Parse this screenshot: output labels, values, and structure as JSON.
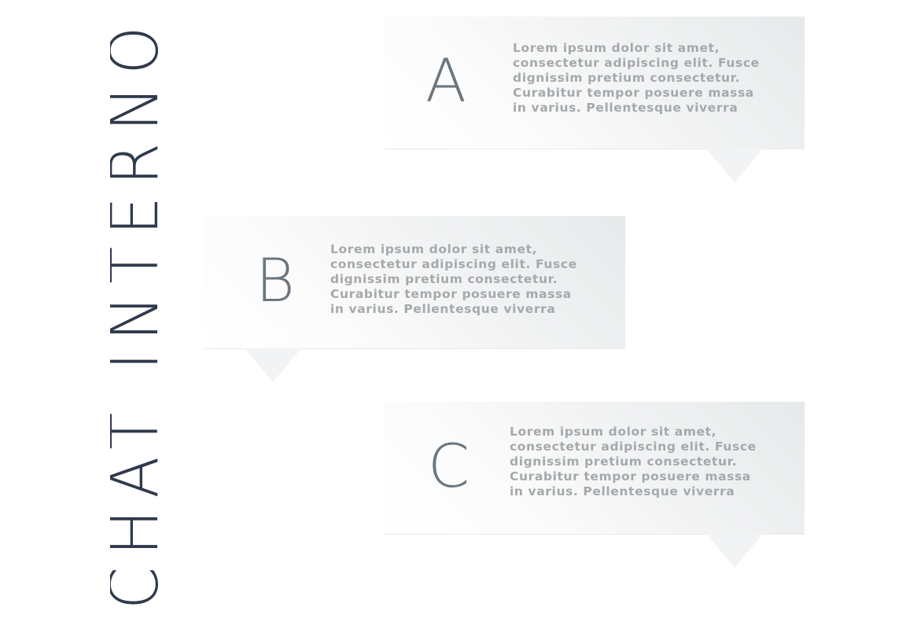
{
  "title": "CHAT INTERNO",
  "bubbles": [
    {
      "letter": "A",
      "text": "Lorem ipsum dolor sit amet, consectetur adipiscing elit. Fusce dignissim pretium consectetur. Curabitur tempor posuere massa in varius. Pellentesque viverra"
    },
    {
      "letter": "B",
      "text": "Lorem ipsum dolor sit amet, consectetur adipiscing elit. Fusce dignissim pretium consectetur. Curabitur tempor posuere massa in varius. Pellentesque viverra"
    },
    {
      "letter": "C",
      "text": "Lorem ipsum dolor sit amet, consectetur adipiscing elit. Fusce dignissim pretium consectetur. Curabitur tempor posuere massa in varius. Pellentesque viverra"
    }
  ],
  "colors": {
    "title": "#2f3a4c",
    "letter": "#6c767e",
    "body_text": "#a5a9ac",
    "bubble_dark": "#e6e9ea",
    "bubble_light": "#ffffff"
  }
}
